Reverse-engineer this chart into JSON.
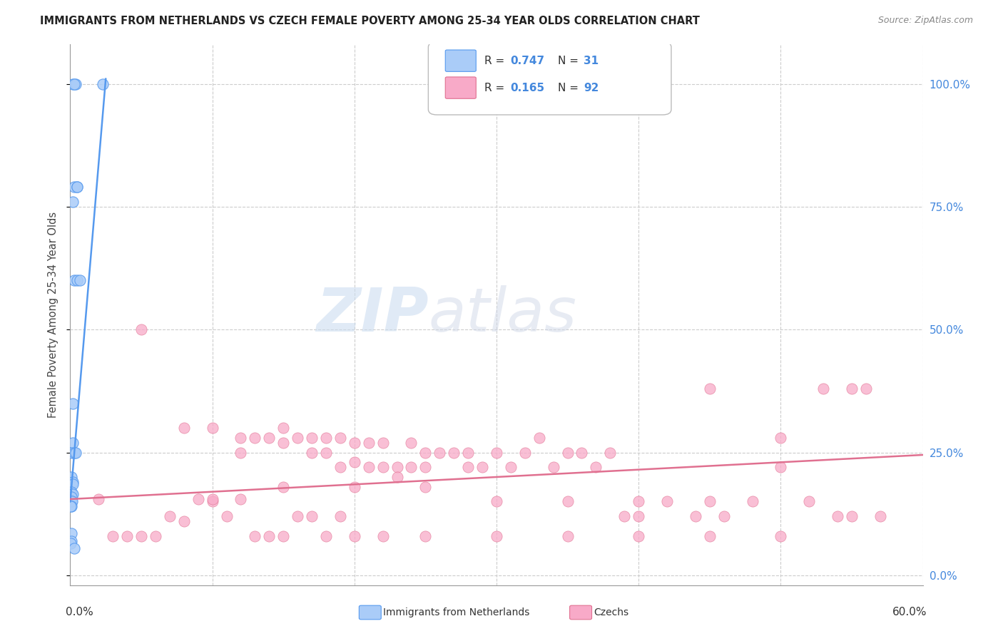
{
  "title": "IMMIGRANTS FROM NETHERLANDS VS CZECH FEMALE POVERTY AMONG 25-34 YEAR OLDS CORRELATION CHART",
  "source": "Source: ZipAtlas.com",
  "ylabel": "Female Poverty Among 25-34 Year Olds",
  "right_yticks": [
    "0.0%",
    "25.0%",
    "50.0%",
    "75.0%",
    "100.0%"
  ],
  "right_ytick_vals": [
    0.0,
    0.25,
    0.5,
    0.75,
    1.0
  ],
  "xlim": [
    0.0,
    0.6
  ],
  "ylim": [
    -0.02,
    1.08
  ],
  "background_color": "#ffffff",
  "grid_color": "#cccccc",
  "netherlands_R": 0.747,
  "netherlands_N": 31,
  "czech_R": 0.165,
  "czech_N": 92,
  "netherlands_color": "#aaccf8",
  "netherlands_edge_color": "#5599ee",
  "czech_color": "#f8aac8",
  "czech_edge_color": "#e07090",
  "nl_trend_x0": 0.0,
  "nl_trend_y0": 0.15,
  "nl_trend_x1": 0.025,
  "nl_trend_y1": 1.01,
  "cz_trend_x0": 0.0,
  "cz_trend_y0": 0.155,
  "cz_trend_x1": 0.6,
  "cz_trend_y1": 0.245,
  "nl_scatter_x": [
    0.002,
    0.004,
    0.023,
    0.003,
    0.003,
    0.005,
    0.005,
    0.002,
    0.003,
    0.005,
    0.007,
    0.002,
    0.002,
    0.001,
    0.003,
    0.004,
    0.001,
    0.002,
    0.002,
    0.001,
    0.001,
    0.002,
    0.001,
    0.001,
    0.0015,
    0.001,
    0.0005,
    0.001,
    0.001,
    0.0005,
    0.003
  ],
  "nl_scatter_y": [
    1.0,
    1.0,
    1.0,
    1.0,
    0.79,
    0.79,
    0.79,
    0.76,
    0.6,
    0.6,
    0.6,
    0.35,
    0.27,
    0.25,
    0.25,
    0.25,
    0.2,
    0.19,
    0.185,
    0.17,
    0.165,
    0.165,
    0.16,
    0.15,
    0.15,
    0.14,
    0.14,
    0.085,
    0.07,
    0.065,
    0.055
  ],
  "cz_scatter_x": [
    0.05,
    0.08,
    0.1,
    0.12,
    0.12,
    0.13,
    0.14,
    0.15,
    0.15,
    0.16,
    0.17,
    0.17,
    0.18,
    0.18,
    0.19,
    0.19,
    0.2,
    0.2,
    0.21,
    0.21,
    0.22,
    0.22,
    0.23,
    0.23,
    0.24,
    0.24,
    0.25,
    0.25,
    0.26,
    0.27,
    0.28,
    0.28,
    0.29,
    0.3,
    0.31,
    0.32,
    0.33,
    0.34,
    0.35,
    0.36,
    0.37,
    0.38,
    0.39,
    0.4,
    0.42,
    0.44,
    0.45,
    0.46,
    0.48,
    0.5,
    0.52,
    0.54,
    0.55,
    0.57,
    0.1,
    0.15,
    0.2,
    0.25,
    0.3,
    0.35,
    0.4,
    0.45,
    0.5,
    0.55,
    0.02,
    0.03,
    0.04,
    0.05,
    0.06,
    0.07,
    0.08,
    0.09,
    0.1,
    0.11,
    0.12,
    0.13,
    0.14,
    0.15,
    0.16,
    0.17,
    0.18,
    0.19,
    0.53,
    0.56,
    0.2,
    0.22,
    0.25,
    0.3,
    0.35,
    0.4,
    0.45,
    0.5
  ],
  "cz_scatter_y": [
    0.5,
    0.3,
    0.3,
    0.28,
    0.25,
    0.28,
    0.28,
    0.3,
    0.27,
    0.28,
    0.28,
    0.25,
    0.28,
    0.25,
    0.28,
    0.22,
    0.27,
    0.23,
    0.27,
    0.22,
    0.27,
    0.22,
    0.22,
    0.2,
    0.27,
    0.22,
    0.25,
    0.22,
    0.25,
    0.25,
    0.25,
    0.22,
    0.22,
    0.25,
    0.22,
    0.25,
    0.28,
    0.22,
    0.25,
    0.25,
    0.22,
    0.25,
    0.12,
    0.12,
    0.15,
    0.12,
    0.15,
    0.12,
    0.15,
    0.22,
    0.15,
    0.12,
    0.12,
    0.12,
    0.15,
    0.18,
    0.18,
    0.18,
    0.15,
    0.15,
    0.15,
    0.38,
    0.28,
    0.38,
    0.155,
    0.08,
    0.08,
    0.08,
    0.08,
    0.12,
    0.11,
    0.155,
    0.155,
    0.12,
    0.155,
    0.08,
    0.08,
    0.08,
    0.12,
    0.12,
    0.08,
    0.12,
    0.38,
    0.38,
    0.08,
    0.08,
    0.08,
    0.08,
    0.08,
    0.08,
    0.08,
    0.08
  ]
}
